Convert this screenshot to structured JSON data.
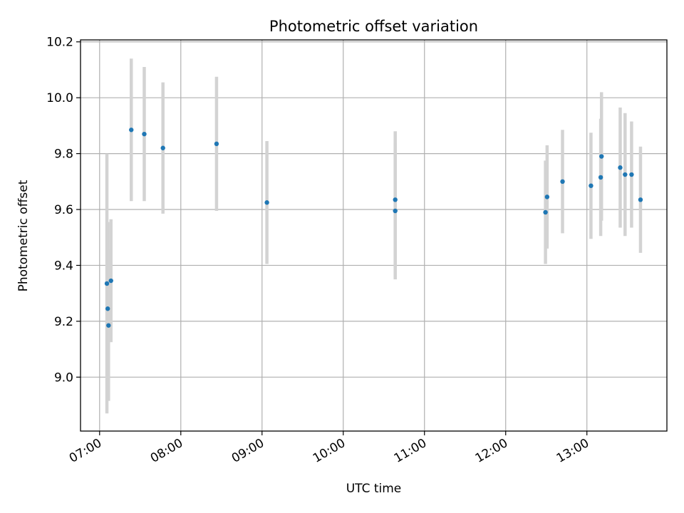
{
  "chart_data": {
    "type": "scatter",
    "title": "Photometric offset variation",
    "xlabel": "UTC time",
    "ylabel": "Photometric offset",
    "x_ticks": [
      "07:00",
      "08:00",
      "09:00",
      "10:00",
      "11:00",
      "12:00",
      "13:00"
    ],
    "x_tick_values": [
      7.0,
      8.0,
      9.0,
      10.0,
      11.0,
      12.0,
      13.0
    ],
    "xlim": [
      6.765,
      13.985
    ],
    "y_ticks": [
      "9.0",
      "9.2",
      "9.4",
      "9.6",
      "9.8",
      "10.0",
      "10.2"
    ],
    "y_tick_values": [
      9.0,
      9.2,
      9.4,
      9.6,
      9.8,
      10.0,
      10.2
    ],
    "ylim": [
      8.807,
      10.207
    ],
    "grid": true,
    "colors": {
      "points": "#1f77b4",
      "errorbars": "#d3d3d3",
      "grid": "#b0b0b0"
    },
    "points": [
      {
        "x": 7.09,
        "y": 9.335,
        "err": 0.465
      },
      {
        "x": 7.1,
        "y": 9.245,
        "err": 0.31
      },
      {
        "x": 7.11,
        "y": 9.185,
        "err": 0.27
      },
      {
        "x": 7.14,
        "y": 9.345,
        "err": 0.22
      },
      {
        "x": 7.39,
        "y": 9.885,
        "err": 0.255
      },
      {
        "x": 7.55,
        "y": 9.87,
        "err": 0.24
      },
      {
        "x": 7.78,
        "y": 9.82,
        "err": 0.235
      },
      {
        "x": 8.44,
        "y": 9.835,
        "err": 0.24
      },
      {
        "x": 9.06,
        "y": 9.625,
        "err": 0.22
      },
      {
        "x": 10.64,
        "y": 9.635,
        "err": 0.245
      },
      {
        "x": 10.64,
        "y": 9.595,
        "err": 0.245
      },
      {
        "x": 12.49,
        "y": 9.59,
        "err": 0.185
      },
      {
        "x": 12.51,
        "y": 9.645,
        "err": 0.185
      },
      {
        "x": 12.7,
        "y": 9.7,
        "err": 0.185
      },
      {
        "x": 13.05,
        "y": 9.685,
        "err": 0.19
      },
      {
        "x": 13.17,
        "y": 9.715,
        "err": 0.21
      },
      {
        "x": 13.18,
        "y": 9.79,
        "err": 0.23
      },
      {
        "x": 13.41,
        "y": 9.75,
        "err": 0.215
      },
      {
        "x": 13.47,
        "y": 9.725,
        "err": 0.22
      },
      {
        "x": 13.55,
        "y": 9.725,
        "err": 0.19
      },
      {
        "x": 13.66,
        "y": 9.635,
        "err": 0.19
      }
    ]
  }
}
